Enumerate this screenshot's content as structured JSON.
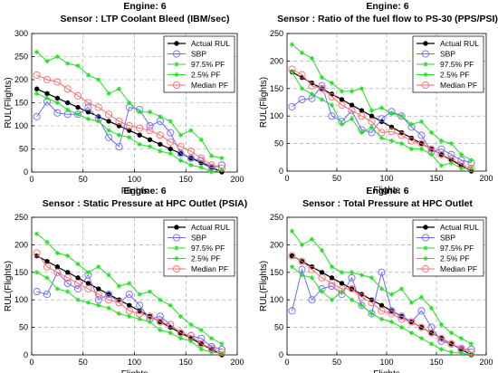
{
  "figure": {
    "background": "#ffffff"
  },
  "legend": {
    "entries": [
      "Actual RUL",
      "SBP",
      "97.5% PF",
      "2.5% PF",
      "Median PF"
    ],
    "colors": [
      "#000000",
      "#6b6bff",
      "#22e022",
      "#22e022",
      "#ff6b6b"
    ]
  },
  "chart_data": [
    {
      "type": "line",
      "title": "Engine: 6",
      "subtitle": "Sensor : LTP Coolant Bleed (IBM/sec)",
      "xlabel": "Flights",
      "ylabel": "RUL(Flights)",
      "xlim": [
        0,
        200
      ],
      "ylim": [
        0,
        300
      ],
      "xticks": [
        0,
        50,
        100,
        150,
        200
      ],
      "yticks": [
        0,
        50,
        100,
        150,
        200,
        250,
        300
      ],
      "grid": true,
      "legend_position": "top-right",
      "x": [
        5,
        15,
        25,
        35,
        45,
        55,
        65,
        75,
        85,
        95,
        105,
        115,
        125,
        135,
        145,
        155,
        165,
        175,
        185
      ],
      "series": [
        {
          "name": "Actual RUL",
          "values": [
            180,
            170,
            160,
            150,
            140,
            130,
            120,
            110,
            100,
            90,
            80,
            70,
            60,
            50,
            40,
            30,
            20,
            10,
            0
          ]
        },
        {
          "name": "SBP",
          "values": [
            120,
            152,
            128,
            125,
            125,
            140,
            115,
            75,
            55,
            140,
            135,
            100,
            110,
            85,
            40,
            30,
            25,
            10,
            15
          ]
        },
        {
          "name": "97.5% PF",
          "values": [
            260,
            240,
            250,
            235,
            230,
            210,
            200,
            170,
            180,
            150,
            130,
            130,
            120,
            110,
            80,
            90,
            70,
            35,
            30
          ]
        },
        {
          "name": "2.5% PF",
          "values": [
            170,
            160,
            150,
            135,
            125,
            115,
            110,
            90,
            80,
            75,
            60,
            55,
            45,
            40,
            25,
            15,
            10,
            0,
            5
          ]
        },
        {
          "name": "Median PF",
          "values": [
            210,
            200,
            195,
            180,
            165,
            150,
            140,
            125,
            110,
            100,
            95,
            90,
            80,
            65,
            55,
            45,
            30,
            15,
            8
          ]
        }
      ]
    },
    {
      "type": "line",
      "title": "Engine: 6",
      "subtitle": "Sensor : Ratio of the fuel flow to PS-30 (PPS/PSI)",
      "xlabel": "Flights",
      "ylabel": "RUL(Flights)",
      "xlim": [
        0,
        200
      ],
      "ylim": [
        0,
        250
      ],
      "xticks": [
        0,
        50,
        100,
        150,
        200
      ],
      "yticks": [
        0,
        50,
        100,
        150,
        200,
        250
      ],
      "grid": true,
      "legend_position": "top-right",
      "x": [
        5,
        15,
        25,
        35,
        45,
        55,
        65,
        75,
        85,
        95,
        105,
        115,
        125,
        135,
        145,
        155,
        165,
        175,
        185
      ],
      "series": [
        {
          "name": "Actual RUL",
          "values": [
            180,
            170,
            160,
            150,
            140,
            130,
            120,
            110,
            100,
            90,
            80,
            70,
            60,
            50,
            40,
            30,
            20,
            10,
            0
          ]
        },
        {
          "name": "SBP",
          "values": [
            117,
            130,
            132,
            155,
            100,
            90,
            110,
            75,
            70,
            95,
            108,
            100,
            80,
            65,
            35,
            40,
            30,
            20,
            15
          ]
        },
        {
          "name": "97.5% PF",
          "values": [
            230,
            215,
            205,
            170,
            160,
            145,
            145,
            150,
            110,
            115,
            105,
            100,
            85,
            90,
            70,
            55,
            50,
            30,
            20
          ]
        },
        {
          "name": "2.5% PF",
          "values": [
            180,
            150,
            140,
            130,
            120,
            85,
            95,
            70,
            80,
            60,
            55,
            50,
            40,
            40,
            30,
            10,
            15,
            5,
            5
          ]
        },
        {
          "name": "Median PF",
          "values": [
            185,
            175,
            155,
            150,
            135,
            120,
            110,
            100,
            90,
            70,
            72,
            65,
            55,
            50,
            40,
            30,
            22,
            12,
            5
          ]
        }
      ]
    },
    {
      "type": "line",
      "title": "Engine: 6",
      "subtitle": "Sensor : Static Pressure at HPC Outlet (PSIA)",
      "xlabel": "Flights",
      "ylabel": "RUL(Flights)",
      "xlim": [
        0,
        200
      ],
      "ylim": [
        0,
        250
      ],
      "xticks": [
        0,
        50,
        100,
        150,
        200
      ],
      "yticks": [
        0,
        50,
        100,
        150,
        200,
        250
      ],
      "grid": true,
      "legend_position": "top-right",
      "x": [
        5,
        15,
        25,
        35,
        45,
        55,
        65,
        75,
        85,
        95,
        105,
        115,
        125,
        135,
        145,
        155,
        165,
        175,
        185
      ],
      "series": [
        {
          "name": "Actual RUL",
          "values": [
            180,
            170,
            160,
            150,
            140,
            130,
            120,
            110,
            100,
            90,
            80,
            70,
            60,
            50,
            40,
            30,
            20,
            10,
            0
          ]
        },
        {
          "name": "SBP",
          "values": [
            115,
            110,
            150,
            130,
            120,
            145,
            100,
            110,
            95,
            110,
            90,
            65,
            70,
            55,
            40,
            35,
            30,
            15,
            10
          ]
        },
        {
          "name": "97.5% PF",
          "values": [
            220,
            205,
            185,
            180,
            165,
            150,
            160,
            145,
            125,
            130,
            110,
            115,
            100,
            90,
            70,
            55,
            45,
            30,
            20
          ]
        },
        {
          "name": "2.5% PF",
          "values": [
            150,
            140,
            120,
            115,
            100,
            95,
            90,
            85,
            75,
            70,
            65,
            60,
            45,
            40,
            30,
            25,
            10,
            5,
            3
          ]
        },
        {
          "name": "Median PF",
          "values": [
            185,
            160,
            150,
            140,
            130,
            120,
            110,
            100,
            95,
            80,
            75,
            70,
            60,
            55,
            40,
            35,
            20,
            12,
            5
          ]
        }
      ]
    },
    {
      "type": "line",
      "title": "Engine: 6",
      "subtitle": "Sensor : Total Pressure at HPC Outlet",
      "xlabel": "Flights",
      "ylabel": "RUL(Flights)",
      "xlim": [
        0,
        200
      ],
      "ylim": [
        0,
        250
      ],
      "xticks": [
        0,
        50,
        100,
        150,
        200
      ],
      "yticks": [
        0,
        50,
        100,
        150,
        200,
        250
      ],
      "grid": true,
      "legend_position": "top-right",
      "x": [
        5,
        15,
        25,
        35,
        45,
        55,
        65,
        75,
        85,
        95,
        105,
        115,
        125,
        135,
        145,
        155,
        165,
        175,
        185
      ],
      "series": [
        {
          "name": "Actual RUL",
          "values": [
            180,
            170,
            160,
            150,
            140,
            130,
            120,
            110,
            100,
            90,
            80,
            70,
            60,
            50,
            40,
            30,
            20,
            10,
            0
          ]
        },
        {
          "name": "SBP",
          "values": [
            80,
            155,
            100,
            120,
            125,
            110,
            140,
            90,
            75,
            150,
            80,
            70,
            60,
            80,
            50,
            25,
            20,
            10,
            10
          ]
        },
        {
          "name": "97.5% PF",
          "values": [
            225,
            200,
            210,
            190,
            160,
            150,
            150,
            145,
            140,
            120,
            110,
            120,
            95,
            105,
            85,
            55,
            40,
            30,
            20
          ]
        },
        {
          "name": "2.5% PF",
          "values": [
            160,
            145,
            140,
            115,
            100,
            115,
            100,
            90,
            75,
            65,
            60,
            50,
            40,
            30,
            20,
            10,
            5,
            3,
            0
          ]
        },
        {
          "name": "Median PF",
          "values": [
            180,
            170,
            155,
            140,
            130,
            120,
            120,
            105,
            95,
            80,
            75,
            65,
            60,
            50,
            40,
            30,
            20,
            12,
            5
          ]
        }
      ]
    }
  ]
}
